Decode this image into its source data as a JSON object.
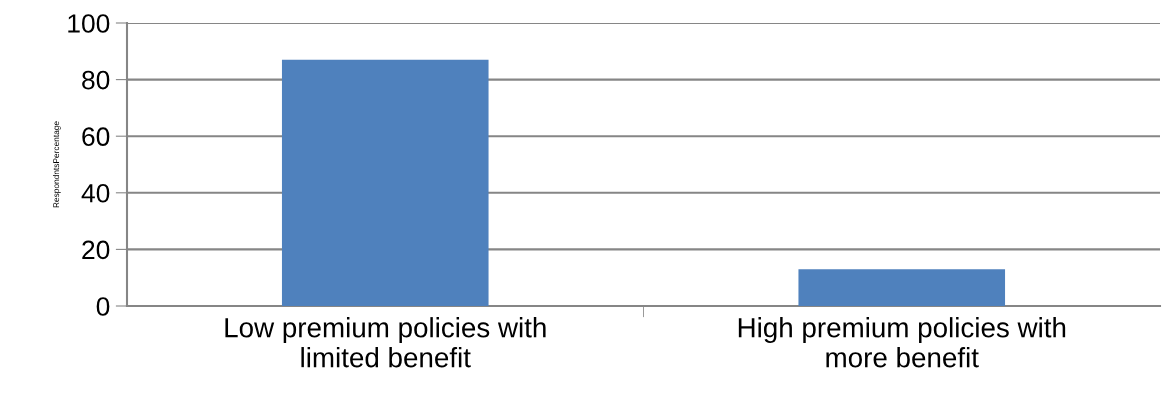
{
  "chart_data": {
    "type": "bar",
    "ylabel": "RespondntsPercentage",
    "categories": [
      "Low premium policies with\nlimited benefit",
      "High premium policies with\nmore benefit"
    ],
    "values": [
      87,
      13
    ],
    "color": "#4f81bd",
    "ylim": [
      0,
      100
    ],
    "yticks": [
      0,
      20,
      40,
      60,
      80,
      100
    ],
    "grid": "y",
    "legend": false
  }
}
